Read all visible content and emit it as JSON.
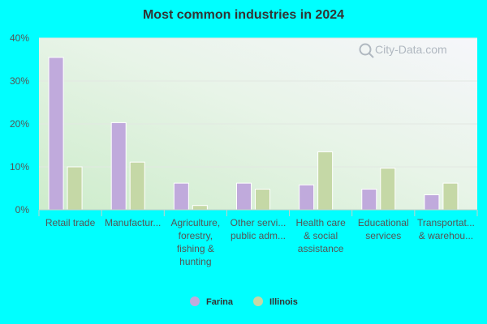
{
  "chart_data": {
    "type": "bar",
    "title": "Most common industries in 2024",
    "categories": [
      [
        "Retail trade"
      ],
      [
        "Manufactur..."
      ],
      [
        "Agriculture,",
        "forestry,",
        "fishing &",
        "hunting"
      ],
      [
        "Other servi...",
        "public adm..."
      ],
      [
        "Health care",
        "& social",
        "assistance"
      ],
      [
        "Educational",
        "services"
      ],
      [
        "Transportat...",
        "& warehou..."
      ]
    ],
    "series": [
      {
        "name": "Farina",
        "color": "#c0aadc",
        "values": [
          35.5,
          20.3,
          6.2,
          6.2,
          5.8,
          4.8,
          3.5
        ]
      },
      {
        "name": "Illinois",
        "color": "#c5d8a6",
        "values": [
          10.0,
          11.1,
          1.0,
          4.8,
          13.5,
          9.7,
          6.2
        ]
      }
    ],
    "y_ticks": [
      "0%",
      "10%",
      "20%",
      "30%",
      "40%"
    ],
    "ylim": [
      0,
      40
    ],
    "grid": true,
    "legend": "bottom-center"
  },
  "watermark": "City-Data.com"
}
